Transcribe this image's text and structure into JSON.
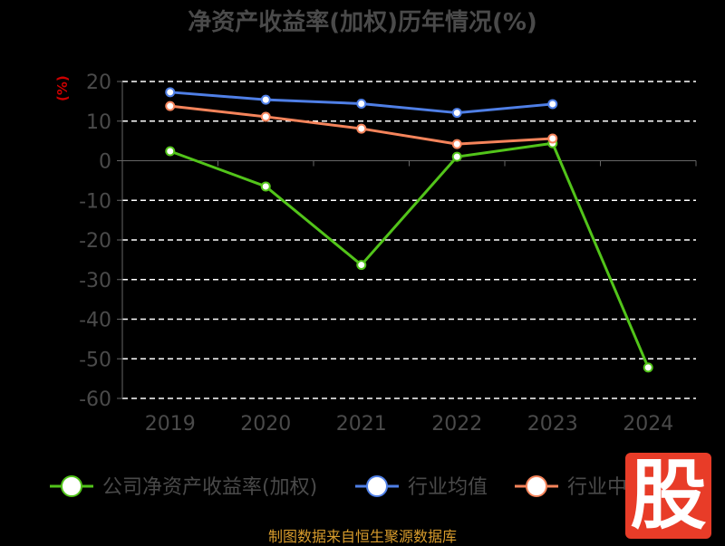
{
  "title": "净资产收益率(加权)历年情况(%)",
  "source": "制图数据来自恒生聚源数据库",
  "watermark": "股",
  "colors": {
    "company": "#52c41a",
    "avg": "#4f7fe6",
    "median": "#f5845b",
    "grid": "#ffffff",
    "axis": "#666666",
    "tick": "#4a4a4a",
    "ylabel": "#cc0000",
    "watermark_bg": "#e83c28"
  },
  "chart_data": {
    "type": "line",
    "title": "净资产收益率(加权)历年情况(%)",
    "ylabel": "(%)",
    "xlabel": "",
    "categories": [
      "2019",
      "2020",
      "2021",
      "2022",
      "2023",
      "2024"
    ],
    "yticks": [
      20,
      10,
      0,
      -10,
      -20,
      -30,
      -40,
      -50,
      -60
    ],
    "ylim": [
      -60,
      20
    ],
    "grid": true,
    "legend_position": "bottom",
    "series": [
      {
        "name": "公司净资产收益率(加权)",
        "key": "company",
        "values": [
          2.4,
          -6.5,
          -26.3,
          1.0,
          4.4,
          -52.2
        ]
      },
      {
        "name": "行业均值",
        "key": "avg",
        "values": [
          17.3,
          15.4,
          14.4,
          12.1,
          14.3,
          null
        ]
      },
      {
        "name": "行业中位数",
        "key": "median",
        "values": [
          13.8,
          11.1,
          8.1,
          4.2,
          5.6,
          null
        ]
      }
    ]
  }
}
